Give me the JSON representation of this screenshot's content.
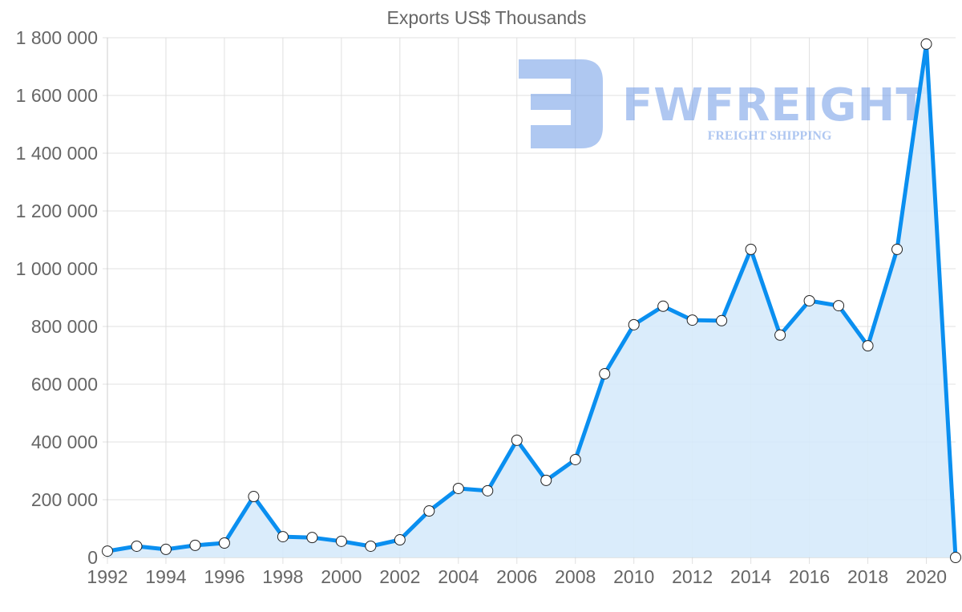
{
  "chart_data": {
    "type": "area",
    "title": "Exports US$ Thousands",
    "xlabel": "",
    "ylabel": "",
    "ylim": [
      0,
      1800000
    ],
    "grid": true,
    "legend": "none",
    "x": [
      1992,
      1993,
      1994,
      1995,
      1996,
      1997,
      1998,
      1999,
      2000,
      2001,
      2002,
      2003,
      2004,
      2005,
      2006,
      2007,
      2008,
      2009,
      2010,
      2011,
      2012,
      2013,
      2014,
      2015,
      2016,
      2017,
      2018,
      2019,
      2020,
      2021
    ],
    "series": [
      {
        "name": "Exports US$ Thousands",
        "values": [
          22000,
          39000,
          28000,
          42000,
          50000,
          211000,
          72000,
          69000,
          56000,
          39000,
          61000,
          161000,
          239000,
          231000,
          406000,
          267000,
          339000,
          636000,
          806000,
          870000,
          822000,
          820000,
          1067000,
          770000,
          889000,
          872000,
          733000,
          1067000,
          1778000,
          0
        ]
      }
    ],
    "x_tick_labels": [
      "1992",
      "1994",
      "1996",
      "1998",
      "2000",
      "2002",
      "2004",
      "2006",
      "2008",
      "2010",
      "2012",
      "2014",
      "2016",
      "2018",
      "2020"
    ],
    "y_tick_labels": [
      "0",
      "200 000",
      "400 000",
      "600 000",
      "800 000",
      "1 000 000",
      "1 200 000",
      "1 400 000",
      "1 600 000",
      "1 800 000"
    ],
    "colors": {
      "line": "#0a8ff0",
      "fill": "#d6eafb",
      "grid": "#e0e0e0",
      "text": "#666666"
    }
  },
  "watermark": {
    "brand": "FWFREIGHT",
    "tagline": "FREIGHT SHIPPING"
  }
}
